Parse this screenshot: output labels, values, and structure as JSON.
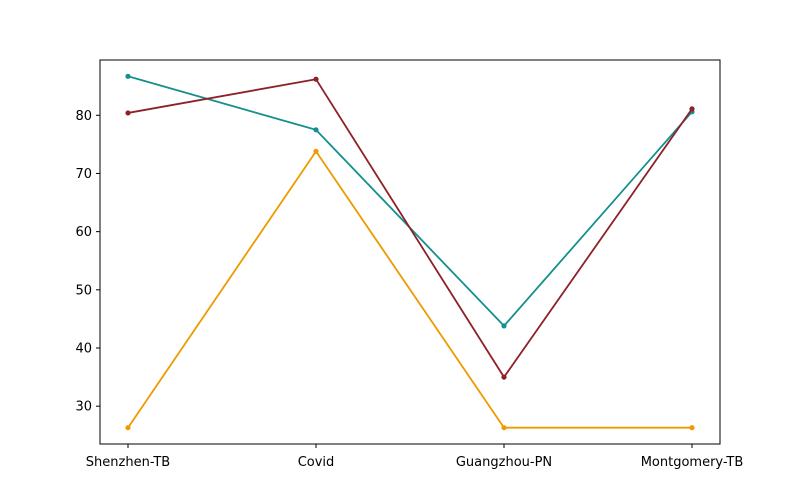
{
  "chart_data": {
    "type": "line",
    "categories": [
      "Shenzhen-TB",
      "Covid",
      "Guangzhou-PN",
      "Montgomery-TB"
    ],
    "ylim": [
      23.5,
      89.5
    ],
    "yticks": [
      30,
      40,
      50,
      60,
      70,
      80
    ],
    "grid": false,
    "series": [
      {
        "color": "#14908f",
        "values": [
          86.7,
          77.5,
          43.8,
          80.6
        ]
      },
      {
        "color": "#8e2127",
        "values": [
          80.4,
          86.2,
          35.0,
          81.1
        ]
      },
      {
        "color": "#ee9a00",
        "values": [
          26.3,
          73.8,
          26.3,
          26.3
        ]
      }
    ]
  }
}
